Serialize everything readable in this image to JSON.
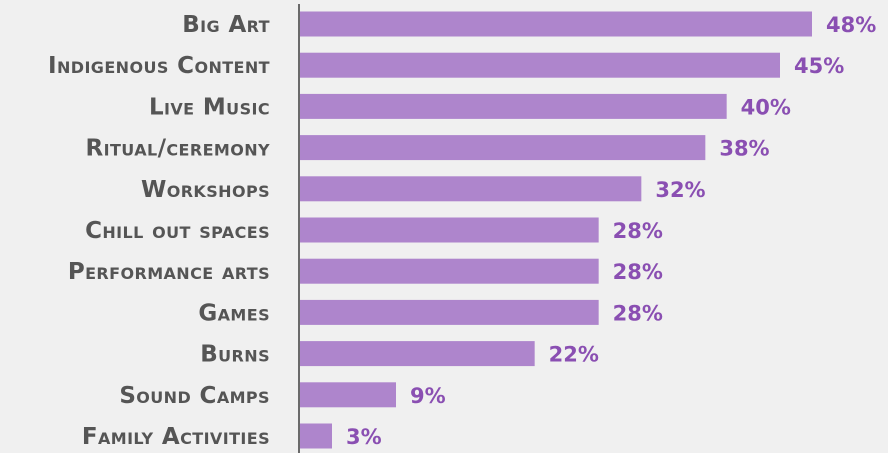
{
  "chart_data": {
    "type": "bar",
    "orientation": "horizontal",
    "categories": [
      "Big Art",
      "Indigenous Content",
      "Live Music",
      "Ritual/ceremony",
      "Workshops",
      "Chill out spaces",
      "Performance arts",
      "Games",
      "Burns",
      "Sound Camps",
      "Family Activities"
    ],
    "values": [
      48,
      45,
      40,
      38,
      32,
      28,
      28,
      28,
      22,
      9,
      3
    ],
    "value_labels": [
      "48%",
      "45%",
      "40%",
      "38%",
      "32%",
      "28%",
      "28%",
      "28%",
      "22%",
      "9%",
      "3%"
    ],
    "title": "",
    "xlabel": "",
    "ylabel": "",
    "xlim": [
      0,
      48
    ],
    "grid": false,
    "legend": "none"
  },
  "colors": {
    "background": "#f0f0f0",
    "bar": "#ae85cc",
    "value_text": "#8a4fb2",
    "category_text": "#555555",
    "axis_line": "#6a6a6a"
  }
}
